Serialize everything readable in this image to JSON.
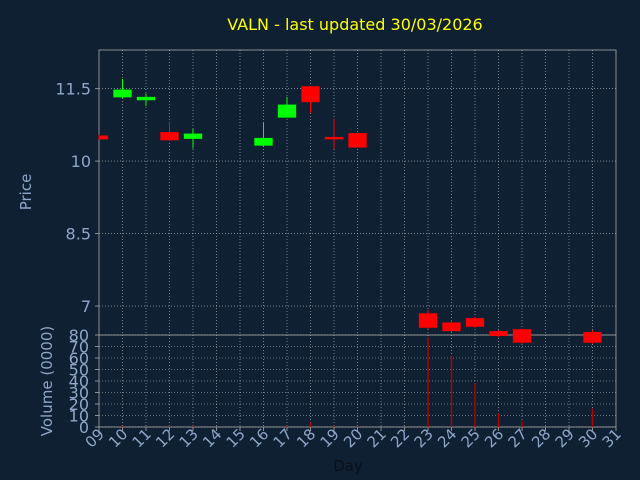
{
  "chart_data": {
    "type": "candlestick",
    "title": "VALN - last updated 30/03/2026",
    "xlabel": "Day",
    "ylabel": "Price",
    "volume_label": "Volume (0000)",
    "x_ticks": [
      "09",
      "10",
      "11",
      "12",
      "13",
      "14",
      "15",
      "16",
      "17",
      "18",
      "19",
      "20",
      "21",
      "22",
      "23",
      "24",
      "25",
      "26",
      "27",
      "28",
      "29",
      "30",
      "31"
    ],
    "xlim": [
      9,
      31
    ],
    "price_ticks": [
      "11.5",
      "10",
      "8.5",
      "7"
    ],
    "price_tick_values": [
      11.5,
      10,
      8.5,
      7
    ],
    "ylim": [
      6.4,
      12.3
    ],
    "volume_ticks": [
      "0",
      "10",
      "20",
      "30",
      "40",
      "50",
      "60",
      "70",
      "80"
    ],
    "volume_tick_values": [
      0,
      10,
      20,
      30,
      40,
      50,
      60,
      70,
      80
    ],
    "volume_ylim": [
      0,
      80
    ],
    "grid": true,
    "candles": [
      {
        "day": 9,
        "open": 10.53,
        "high": 10.55,
        "low": 10.45,
        "close": 10.45,
        "volume": 0
      },
      {
        "day": 10,
        "open": 11.32,
        "high": 11.7,
        "low": 11.3,
        "close": 11.48,
        "volume": 1
      },
      {
        "day": 11,
        "open": 11.26,
        "high": 11.4,
        "low": 11.14,
        "close": 11.33,
        "volume": 0
      },
      {
        "day": 12,
        "open": 10.6,
        "high": 10.82,
        "low": 10.42,
        "close": 10.43,
        "volume": 1
      },
      {
        "day": 13,
        "open": 10.46,
        "high": 10.67,
        "low": 10.26,
        "close": 10.57,
        "volume": 1
      },
      {
        "day": 16,
        "open": 10.32,
        "high": 10.8,
        "low": 10.3,
        "close": 10.48,
        "volume": 0
      },
      {
        "day": 17,
        "open": 10.9,
        "high": 11.33,
        "low": 10.9,
        "close": 11.17,
        "volume": 1
      },
      {
        "day": 18,
        "open": 11.55,
        "high": 11.55,
        "low": 11.0,
        "close": 11.22,
        "volume": 4
      },
      {
        "day": 19,
        "open": 10.5,
        "high": 10.87,
        "low": 10.25,
        "close": 10.45,
        "volume": 1
      },
      {
        "day": 20,
        "open": 10.58,
        "high": 10.58,
        "low": 10.28,
        "close": 10.28,
        "volume": 1
      },
      {
        "day": 23,
        "open": 6.85,
        "high": 6.92,
        "low": 6.52,
        "close": 6.55,
        "volume": 78
      },
      {
        "day": 24,
        "open": 6.66,
        "high": 6.7,
        "low": 6.46,
        "close": 6.48,
        "volume": 62
      },
      {
        "day": 25,
        "open": 6.75,
        "high": 6.78,
        "low": 6.55,
        "close": 6.57,
        "volume": 38
      },
      {
        "day": 26,
        "open": 6.48,
        "high": 6.5,
        "low": 6.36,
        "close": 6.38,
        "volume": 12
      },
      {
        "day": 27,
        "open": 6.52,
        "high": 6.53,
        "low": 6.22,
        "close": 6.24,
        "volume": 5
      },
      {
        "day": 30,
        "open": 6.46,
        "high": 6.5,
        "low": 6.22,
        "close": 6.24,
        "volume": 16
      }
    ]
  },
  "colors": {
    "background": "#0f2033",
    "title": "#ffff00",
    "axis_text": "#8fa6c8",
    "frame": "#8c8c8c",
    "grid": "#c0c0c0",
    "up": "#00ff00",
    "down": "#ff0000",
    "volume": "#b00000"
  }
}
